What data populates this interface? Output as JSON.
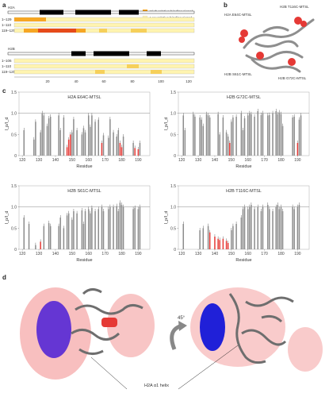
{
  "panels": {
    "a": "a",
    "b": "b",
    "c": "c",
    "d": "d"
  },
  "panel_a": {
    "legend_high": "High relative binding signal",
    "legend_low": "Low relative binding signal",
    "legend_colors": {
      "high": "#e64a19",
      "mid": "#f6a623",
      "low": "#fff4b0"
    },
    "h2a_title": "H2A",
    "h2b_title": "H2B",
    "h2a_rows": [
      "1–129",
      "1–110",
      "119–129"
    ],
    "h2b_rows": [
      "1–106",
      "1–110",
      "119–125"
    ],
    "axis_ticks": [
      "20",
      "40",
      "60",
      "80",
      "100",
      "120"
    ]
  },
  "panel_b": {
    "labels": [
      "H2A E64C-MTSL",
      "H2B T116C-MTSL",
      "H2B S61C-MTSL",
      "H2B G72C-MTSL"
    ]
  },
  "panel_d": {
    "rotation_label": "45°",
    "helix_label": "H2A α1 helix"
  },
  "chart_data": [
    {
      "type": "bar",
      "title": "H2A E64C-MTSL",
      "xlabel": "Residue",
      "ylabel": "I_p/I_d",
      "xlim": [
        118,
        197
      ],
      "ylim": [
        0,
        1.5
      ],
      "xticks": [
        120,
        130,
        140,
        150,
        160,
        170,
        180,
        190
      ],
      "yticks": [
        "0",
        "0.5",
        "1.0",
        "1.5"
      ],
      "values": [
        [
          121,
          0.6
        ],
        [
          127,
          0.38
        ],
        [
          128,
          0.8
        ],
        [
          131,
          0.55
        ],
        [
          132,
          1.0
        ],
        [
          133,
          0.95
        ],
        [
          135,
          0.7
        ],
        [
          136,
          0.88
        ],
        [
          137,
          0.92
        ],
        [
          142,
          0.95
        ],
        [
          143,
          0.6
        ],
        [
          145,
          0.9
        ],
        [
          147,
          0.2
        ],
        [
          148,
          0.38
        ],
        [
          149,
          0.5
        ],
        [
          150,
          0.55
        ],
        [
          151,
          0.86
        ],
        [
          153,
          0.6
        ],
        [
          156,
          0.5
        ],
        [
          157,
          0.65
        ],
        [
          158,
          0.55
        ],
        [
          160,
          0.95
        ],
        [
          161,
          0.68
        ],
        [
          162,
          0.95
        ],
        [
          164,
          0.8
        ],
        [
          166,
          0.85
        ],
        [
          168,
          0.3
        ],
        [
          169,
          0.48
        ],
        [
          172,
          0.42
        ],
        [
          173,
          0.86
        ],
        [
          175,
          0.55
        ],
        [
          177,
          0.45
        ],
        [
          178,
          0.6
        ],
        [
          179,
          0.3
        ],
        [
          180,
          0.2
        ],
        [
          181,
          0.45
        ],
        [
          187,
          0.3
        ],
        [
          188,
          0.18
        ],
        [
          190,
          0.15
        ],
        [
          191,
          0.3
        ]
      ],
      "highlight": [
        147,
        148,
        149,
        168,
        179,
        180,
        188,
        190
      ]
    },
    {
      "type": "bar",
      "title": "H2B G72C-MTSL",
      "xlabel": "Residue",
      "ylabel": "I_p/I_d",
      "xlim": [
        118,
        197
      ],
      "ylim": [
        0,
        1.5
      ],
      "xticks": [
        120,
        130,
        140,
        150,
        160,
        170,
        180,
        190
      ],
      "yticks": [
        "0",
        "0.5",
        "1.0",
        "1.5"
      ],
      "values": [
        [
          121,
          0.95
        ],
        [
          122,
          0.6
        ],
        [
          127,
          0.98
        ],
        [
          128,
          0.92
        ],
        [
          131,
          0.9
        ],
        [
          132,
          0.85
        ],
        [
          133,
          0.7
        ],
        [
          135,
          0.98
        ],
        [
          136,
          0.95
        ],
        [
          137,
          0.9
        ],
        [
          142,
          0.98
        ],
        [
          143,
          0.5
        ],
        [
          145,
          0.9
        ],
        [
          147,
          0.55
        ],
        [
          148,
          0.45
        ],
        [
          149,
          0.3
        ],
        [
          150,
          0.8
        ],
        [
          151,
          0.9
        ],
        [
          153,
          0.92
        ],
        [
          156,
          1.0
        ],
        [
          157,
          0.6
        ],
        [
          158,
          0.88
        ],
        [
          160,
          0.95
        ],
        [
          161,
          1.0
        ],
        [
          162,
          0.98
        ],
        [
          164,
          0.92
        ],
        [
          166,
          1.05
        ],
        [
          168,
          0.96
        ],
        [
          169,
          1.0
        ],
        [
          172,
          0.95
        ],
        [
          173,
          0.96
        ],
        [
          175,
          1.0
        ],
        [
          177,
          1.05
        ],
        [
          178,
          0.98
        ],
        [
          179,
          1.02
        ],
        [
          180,
          0.98
        ],
        [
          181,
          0.7
        ],
        [
          187,
          0.9
        ],
        [
          188,
          0.92
        ],
        [
          190,
          0.3
        ],
        [
          191,
          0.85
        ],
        [
          192,
          0.95
        ]
      ],
      "highlight": [
        149,
        190
      ]
    },
    {
      "type": "bar",
      "title": "H2B S61C-MTSL",
      "xlabel": "Residue",
      "ylabel": "I_p/I_d",
      "xlim": [
        118,
        197
      ],
      "ylim": [
        0,
        1.5
      ],
      "xticks": [
        120,
        130,
        140,
        150,
        160,
        170,
        180,
        190
      ],
      "yticks": [
        "0",
        "0.5",
        "1.0",
        "1.5"
      ],
      "values": [
        [
          121,
          0.75
        ],
        [
          124,
          0.6
        ],
        [
          128,
          0.1
        ],
        [
          131,
          0.18
        ],
        [
          133,
          0.55
        ],
        [
          136,
          0.62
        ],
        [
          137,
          0.55
        ],
        [
          142,
          0.55
        ],
        [
          143,
          0.75
        ],
        [
          145,
          0.5
        ],
        [
          147,
          0.8
        ],
        [
          148,
          0.85
        ],
        [
          150,
          0.7
        ],
        [
          151,
          0.9
        ],
        [
          153,
          0.85
        ],
        [
          156,
          0.92
        ],
        [
          157,
          0.6
        ],
        [
          158,
          0.9
        ],
        [
          160,
          0.95
        ],
        [
          161,
          0.85
        ],
        [
          162,
          0.98
        ],
        [
          164,
          0.9
        ],
        [
          166,
          0.95
        ],
        [
          168,
          1.0
        ],
        [
          169,
          0.9
        ],
        [
          172,
          0.95
        ],
        [
          173,
          1.0
        ],
        [
          175,
          1.0
        ],
        [
          177,
          1.02
        ],
        [
          178,
          0.9
        ],
        [
          179,
          1.1
        ],
        [
          180,
          1.05
        ],
        [
          181,
          1.0
        ],
        [
          187,
          0.95
        ],
        [
          188,
          0.98
        ],
        [
          190,
          0.95
        ],
        [
          191,
          1.0
        ]
      ],
      "highlight": [
        131
      ]
    },
    {
      "type": "bar",
      "title": "H2B T116C-MTSL",
      "xlabel": "Residue",
      "ylabel": "I_p/I_d",
      "xlim": [
        118,
        197
      ],
      "ylim": [
        0,
        1.5
      ],
      "xticks": [
        120,
        130,
        140,
        150,
        160,
        170,
        180,
        190
      ],
      "yticks": [
        "0",
        "0.5",
        "1.0",
        "1.5"
      ],
      "values": [
        [
          121,
          0.6
        ],
        [
          131,
          0.45
        ],
        [
          133,
          0.5
        ],
        [
          136,
          0.55
        ],
        [
          137,
          0.4
        ],
        [
          140,
          0.3
        ],
        [
          142,
          0.25
        ],
        [
          143,
          0.22
        ],
        [
          145,
          0.25
        ],
        [
          147,
          0.2
        ],
        [
          148,
          0.15
        ],
        [
          150,
          0.45
        ],
        [
          151,
          0.55
        ],
        [
          153,
          0.6
        ],
        [
          156,
          0.75
        ],
        [
          157,
          0.95
        ],
        [
          158,
          1.0
        ],
        [
          160,
          0.95
        ],
        [
          161,
          1.0
        ],
        [
          162,
          1.05
        ],
        [
          164,
          0.95
        ],
        [
          166,
          1.0
        ],
        [
          168,
          0.9
        ],
        [
          169,
          1.0
        ],
        [
          172,
          1.05
        ],
        [
          173,
          0.95
        ],
        [
          175,
          0.9
        ],
        [
          177,
          1.0
        ],
        [
          178,
          1.05
        ],
        [
          179,
          0.95
        ],
        [
          180,
          1.0
        ],
        [
          181,
          0.9
        ],
        [
          187,
          1.0
        ],
        [
          188,
          0.95
        ],
        [
          190,
          1.0
        ],
        [
          191,
          1.05
        ]
      ],
      "highlight": [
        137,
        140,
        142,
        143,
        145,
        147,
        148
      ]
    }
  ]
}
